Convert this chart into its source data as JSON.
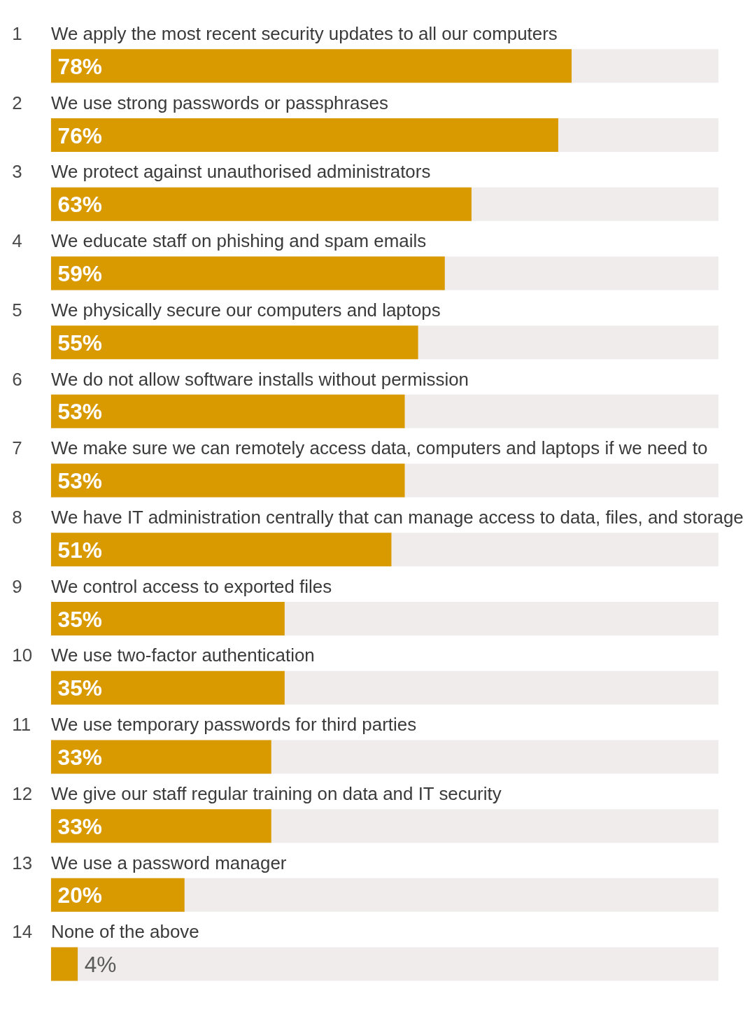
{
  "chart_data": {
    "type": "bar",
    "orientation": "horizontal",
    "categories": [
      "We apply the most recent security updates to all our computers",
      "We use strong passwords or passphrases",
      "We protect against unauthorised administrators",
      "We educate staff on phishing and spam emails",
      "We physically secure our computers and laptops",
      "We do not allow software installs without permission",
      "We make sure we can remotely access data, computers and laptops if we need to",
      "We have IT administration centrally that can manage access to data, files, and storage",
      "We control access to exported files",
      "We use two-factor authentication",
      "We use temporary passwords for third parties",
      "We give our staff regular training on data and IT security",
      "We use a password manager",
      "None of the above"
    ],
    "values": [
      78,
      76,
      63,
      59,
      55,
      53,
      53,
      51,
      35,
      35,
      33,
      33,
      20,
      4
    ],
    "value_labels": [
      "78%",
      "76%",
      "63%",
      "59%",
      "55%",
      "53%",
      "53%",
      "51%",
      "35%",
      "35%",
      "33%",
      "33%",
      "20%",
      "4%"
    ],
    "color": "#d99a00",
    "xlim": [
      0,
      100
    ],
    "tick_labels": false,
    "annotations": [
      "1",
      "2",
      "3",
      "4",
      "5",
      "6",
      "7",
      "8",
      "9",
      "10",
      "11",
      "12",
      "13",
      "14"
    ]
  }
}
